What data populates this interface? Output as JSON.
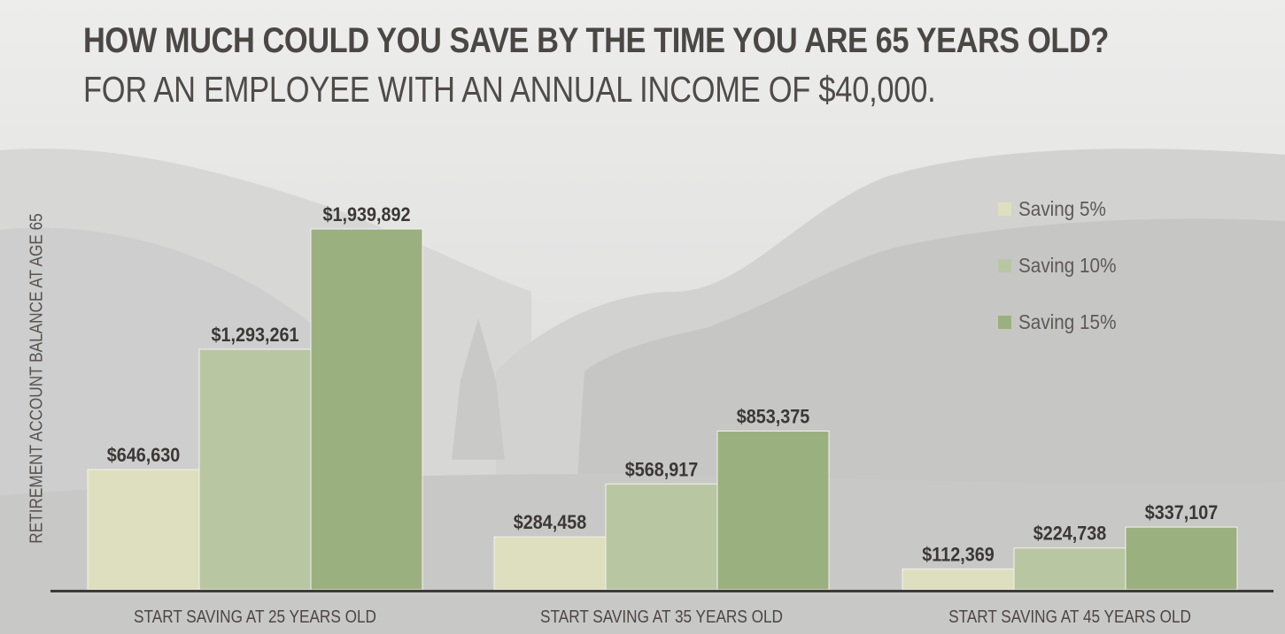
{
  "header": {
    "title": "HOW MUCH COULD YOU SAVE BY THE TIME YOU ARE 65 YEARS OLD?",
    "subtitle": "FOR AN EMPLOYEE WITH AN ANNUAL INCOME OF $40,000."
  },
  "chart_data": {
    "type": "bar",
    "title": "HOW MUCH COULD YOU SAVE BY THE TIME YOU ARE 65 YEARS OLD?",
    "subtitle": "FOR AN EMPLOYEE WITH AN ANNUAL INCOME OF $40,000.",
    "ylabel": "RETIREMENT ACCOUNT BALANCE AT AGE 65",
    "xlabel": "",
    "categories": [
      "START SAVING AT 25 YEARS OLD",
      "START SAVING AT 35 YEARS OLD",
      "START SAVING AT 45 YEARS OLD"
    ],
    "series": [
      {
        "name": "Saving 5%",
        "values": [
          646630,
          284458,
          112369
        ],
        "labels": [
          "$646,630",
          "$284,458",
          "$112,369"
        ],
        "color": "#dedfbe"
      },
      {
        "name": "Saving 10%",
        "values": [
          1293261,
          568917,
          224738
        ],
        "labels": [
          "$1,293,261",
          "$568,917",
          "$224,738"
        ],
        "color": "#b8c6a2"
      },
      {
        "name": "Saving 15%",
        "values": [
          1939892,
          853375,
          337107
        ],
        "labels": [
          "$1,939,892",
          "$853,375",
          "$337,107"
        ],
        "color": "#9bb07f"
      }
    ],
    "ylim": [
      0,
      1939892
    ],
    "grid": false,
    "legend_position": "top-right"
  },
  "colors": {
    "axis": "#3d3b39",
    "text_dark": "#3a3836",
    "background": "#e9e9e8"
  }
}
